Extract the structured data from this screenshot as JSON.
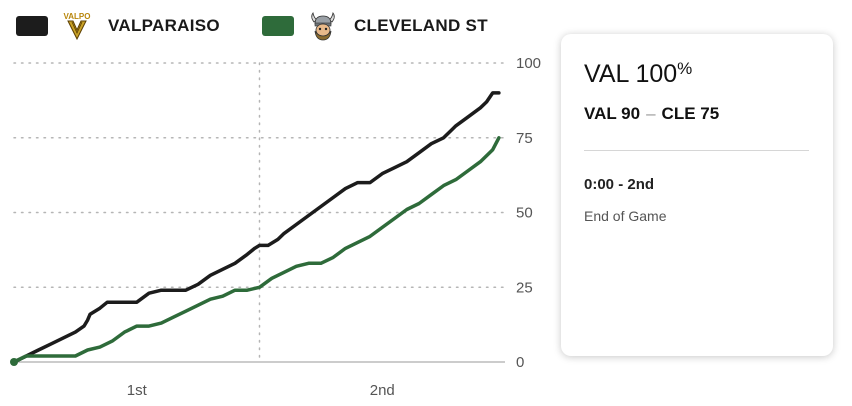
{
  "teams": [
    {
      "name": "VALPARAISO",
      "abbr": "VAL",
      "color": "#1c1c1c",
      "logo_icon": "valpo-logo",
      "logo_text": "VALPO"
    },
    {
      "name": "CLEVELAND ST",
      "abbr": "CLE",
      "color": "#2e6b3a",
      "logo_icon": "viking-logo"
    }
  ],
  "card": {
    "probability_team": "VAL",
    "probability_value": "100",
    "probability_unit": "%",
    "score_home": "VAL 90",
    "score_sep": "–",
    "score_away": "CLE 75",
    "clock": "0:00 - 2nd",
    "status": "End of Game"
  },
  "chart_data": {
    "type": "line",
    "title": "",
    "xlabel": "",
    "ylabel": "",
    "x_periods": [
      "1st",
      "2nd"
    ],
    "xlim": [
      0,
      40
    ],
    "ylim": [
      0,
      100
    ],
    "y_ticks": [
      0,
      25,
      50,
      75,
      100
    ],
    "grid": true,
    "series": [
      {
        "name": "VALPARAISO",
        "color": "#1c1c1c",
        "x": [
          0,
          1,
          2,
          3,
          4,
          5,
          5.7,
          6,
          6.2,
          7,
          7.6,
          8,
          9,
          10,
          11,
          12,
          13,
          14,
          15,
          16,
          17,
          18,
          19,
          19.6,
          20,
          20.7,
          21.5,
          22,
          23,
          24,
          25,
          26,
          27,
          28,
          29,
          30,
          31,
          32,
          33,
          34,
          35,
          35.5,
          36,
          37,
          38,
          38.5,
          39,
          39.5
        ],
        "y": [
          0,
          2,
          4,
          6,
          8,
          10,
          12,
          14,
          16,
          18,
          20,
          20,
          20,
          20,
          23,
          24,
          24,
          24,
          26,
          29,
          31,
          33,
          36,
          38,
          39,
          39,
          41,
          43,
          46,
          49,
          52,
          55,
          58,
          60,
          60,
          63,
          65,
          67,
          70,
          73,
          75,
          77,
          79,
          82,
          85,
          87,
          90,
          90
        ]
      },
      {
        "name": "CLEVELAND ST",
        "color": "#2e6b3a",
        "x": [
          0,
          1,
          2,
          3,
          4,
          5,
          6,
          7,
          8,
          9,
          10,
          11,
          12,
          13,
          14,
          15,
          16,
          17,
          18,
          19,
          20,
          21,
          22,
          23,
          24,
          25,
          26,
          27,
          28,
          29,
          30,
          31,
          32,
          33,
          34,
          35,
          36,
          37,
          38,
          39,
          39.5
        ],
        "y": [
          0,
          2,
          2,
          2,
          2,
          2,
          4,
          5,
          7,
          10,
          12,
          12,
          13,
          15,
          17,
          19,
          21,
          22,
          24,
          24,
          25,
          28,
          30,
          32,
          33,
          33,
          35,
          38,
          40,
          42,
          45,
          48,
          51,
          53,
          56,
          59,
          61,
          64,
          67,
          71,
          75
        ]
      }
    ]
  }
}
